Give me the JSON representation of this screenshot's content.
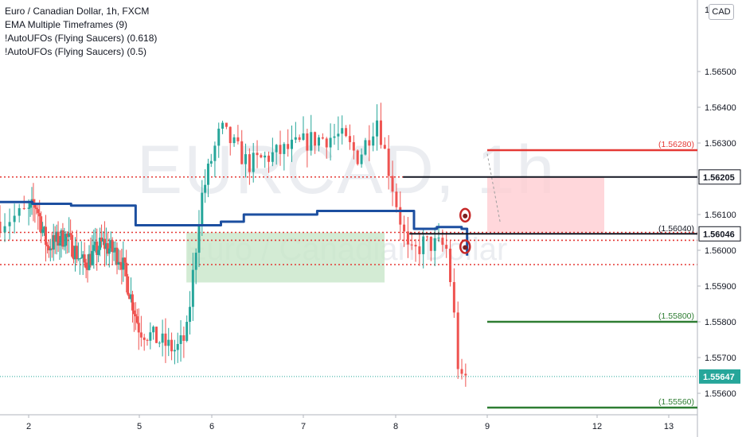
{
  "header": {
    "symbol_line": "Euro / Canadian Dollar, 1h, FXCM",
    "indicators": [
      "EMA Multiple Timeframes (9)",
      "!AutoUFOs (Flying Saucers) (0.618)",
      "!AutoUFOs (Flying Saucers) (0.5)"
    ],
    "currency_badge": "CAD"
  },
  "watermark": {
    "title": "EURCAD, 1h",
    "subtitle": "Euro / Canadian Dollar"
  },
  "colors": {
    "candle_up": "#26a69a",
    "candle_down": "#ef5350",
    "ema": "#1c4fa0",
    "red_line": "#e53935",
    "green_line": "#2e7d32",
    "dotted": "#e53935",
    "green_zone": "#c8e6c9",
    "red_zone": "#ffcdd2",
    "black": "#131722",
    "price_label": "#26a69a"
  },
  "chart_data": {
    "type": "candlestick",
    "x_ticks": [
      "2",
      "5",
      "6",
      "7",
      "8",
      "9",
      "12",
      "13"
    ],
    "y_ticks": [
      "1.56500",
      "1.56400",
      "1.56300",
      "1.56200",
      "1.56100",
      "1.56000",
      "1.55900",
      "1.55800",
      "1.55700",
      "1.55600"
    ],
    "y_range": [
      1.5554,
      1.567
    ],
    "y_top_partial_label": "1",
    "last_price": 1.55647,
    "last_price_label": "1.55647",
    "candle_seed": 7,
    "levels": [
      {
        "name": "red-target",
        "value": 1.5628,
        "label": "(1.56280)",
        "style": "red",
        "x_from": 9.0
      },
      {
        "name": "black-upper",
        "value": 1.56205,
        "label": "1.56205",
        "style": "black-badge",
        "x_from": 8.08
      },
      {
        "name": "black-lower",
        "value": 1.56046,
        "label": "1.56046",
        "style": "black-badge",
        "x_from": 8.15
      },
      {
        "name": "entry-level",
        "value": 1.5604,
        "label": "(1.56040)",
        "style": "plain",
        "x_from": 8.9
      },
      {
        "name": "green-target-1",
        "value": 1.558,
        "label": "(1.55800)",
        "style": "green",
        "x_from": 9.0
      },
      {
        "name": "green-target-2",
        "value": 1.5556,
        "label": "(1.55560)",
        "style": "green",
        "x_from": 9.0
      }
    ],
    "dotted_levels": [
      1.56205,
      1.5605,
      1.56028,
      1.5596
    ],
    "zones": [
      {
        "name": "green-ufo-zone",
        "x0": 5.65,
        "x1": 7.88,
        "y0": 1.5605,
        "y1": 1.5591,
        "color": "green"
      },
      {
        "name": "red-ufo-zone",
        "x0": 9.0,
        "x1": 12.1,
        "y0": 1.56205,
        "y1": 1.5605,
        "color": "red"
      }
    ],
    "ema_steps": [
      [
        1.75,
        1.56135
      ],
      [
        2.1,
        1.5613
      ],
      [
        3.15,
        1.56125
      ],
      [
        4.9,
        1.5607
      ],
      [
        6.1,
        1.5608
      ],
      [
        6.35,
        1.561
      ],
      [
        7.15,
        1.5611
      ],
      [
        8.1,
        1.5611
      ],
      [
        8.2,
        1.5606
      ],
      [
        8.45,
        1.56065
      ],
      [
        8.72,
        1.5606
      ],
      [
        8.78,
        1.55985
      ]
    ],
    "markers": [
      {
        "name": "ufo-marker-upper",
        "x": 8.75,
        "y": 1.56098
      },
      {
        "name": "ufo-marker-lower",
        "x": 8.75,
        "y": 1.5601
      }
    ]
  }
}
